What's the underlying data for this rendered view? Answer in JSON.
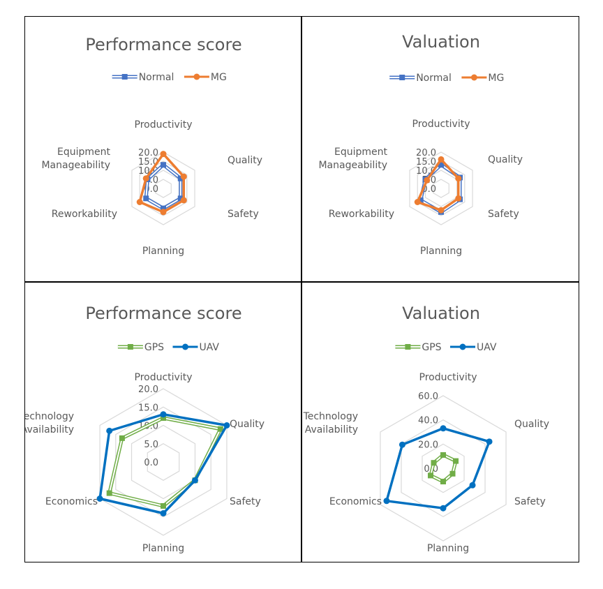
{
  "chart_data": [
    {
      "type": "radar",
      "title": "Performance score",
      "categories": [
        "Productivity",
        "Quality",
        "Safety",
        "Planning",
        "Reworkability",
        "Equipment Manageability"
      ],
      "rmax": 20,
      "ticks": [
        "0.0",
        "5.0",
        "10.0",
        "15.0",
        "20.0"
      ],
      "legend_position": "top",
      "series": [
        {
          "name": "Normal",
          "values": [
            13,
            11,
            11,
            11,
            11,
            10
          ],
          "color": "#4472C4",
          "style": "double"
        },
        {
          "name": "MG",
          "values": [
            19,
            13,
            13,
            13,
            15,
            11
          ],
          "color": "#ED7D31",
          "style": "solid"
        }
      ]
    },
    {
      "type": "radar",
      "title": "Valuation",
      "categories": [
        "Productivity",
        "Quality",
        "Safety",
        "Planning",
        "Reworkability",
        "Equipment Manageability"
      ],
      "rmax": 20,
      "ticks": [
        "0.0",
        "5.0",
        "10.0",
        "15.0",
        "20.0"
      ],
      "legend_position": "top",
      "series": [
        {
          "name": "Normal",
          "values": [
            13,
            12,
            12,
            13,
            13,
            10
          ],
          "color": "#4472C4",
          "style": "double"
        },
        {
          "name": "MG",
          "values": [
            16,
            11,
            11,
            12,
            15,
            9
          ],
          "color": "#ED7D31",
          "style": "solid"
        }
      ]
    },
    {
      "type": "radar",
      "title": "Performance score",
      "categories": [
        "Productivity",
        "Quality",
        "Safety",
        "Planning",
        "Economics",
        "Technology Availability"
      ],
      "rmax": 20,
      "ticks": [
        "0.0",
        "5.0",
        "10.0",
        "15.0",
        "20.0"
      ],
      "legend_position": "top",
      "series": [
        {
          "name": "GPS",
          "values": [
            12,
            18,
            10,
            12,
            17,
            13
          ],
          "color": "#70AD47",
          "style": "double"
        },
        {
          "name": "UAV",
          "values": [
            13,
            20,
            10,
            14,
            20,
            17
          ],
          "color": "#0070C0",
          "style": "solid"
        }
      ]
    },
    {
      "type": "radar",
      "title": "Valuation",
      "categories": [
        "Productivity",
        "Quality",
        "Safety",
        "Planning",
        "Economics",
        "Technology Availability"
      ],
      "rmax": 60,
      "ticks": [
        "0.0",
        "20.0",
        "40.0",
        "60.0"
      ],
      "legend_position": "top",
      "series": [
        {
          "name": "GPS",
          "values": [
            11,
            12,
            9,
            11,
            12,
            9
          ],
          "color": "#70AD47",
          "style": "double"
        },
        {
          "name": "UAV",
          "values": [
            33,
            44,
            28,
            33,
            54,
            39
          ],
          "color": "#0070C0",
          "style": "solid"
        }
      ]
    }
  ]
}
